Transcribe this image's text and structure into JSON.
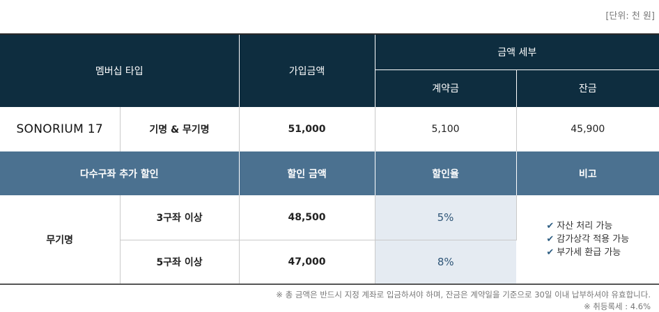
{
  "unit_label": "[단위: 천 원]",
  "header": {
    "membership_type": "멤버십 타입",
    "join_amount": "가입금액",
    "amount_detail": "금액 세부",
    "deposit": "계약금",
    "balance": "잔금"
  },
  "product": {
    "name": "SONORIUM 17",
    "type": "기명 & 무기명",
    "join_amount": "51,000",
    "deposit": "5,100",
    "balance": "45,900"
  },
  "discount_header": {
    "title": "다수구좌 추가 할인",
    "discount_amount": "할인 금액",
    "discount_rate": "할인율",
    "remark": "비고"
  },
  "discount": {
    "group": "무기명",
    "rows": [
      {
        "condition": "3구좌 이상",
        "amount": "48,500",
        "rate": "5%"
      },
      {
        "condition": "5구좌 이상",
        "amount": "47,000",
        "rate": "8%"
      }
    ],
    "remarks": [
      "자산 처리 가능",
      "감가상각 적용 가능",
      "부가세 환급 가능"
    ]
  },
  "footnotes": {
    "payment": "※ 총 금액은 반드시 지정 계좌로 입금하셔야 하며, 잔금은 계약일을 기준으로 30일 이내 납부하셔야 유효합니다.",
    "tax": "※ 취등록세 : 4.6%"
  }
}
